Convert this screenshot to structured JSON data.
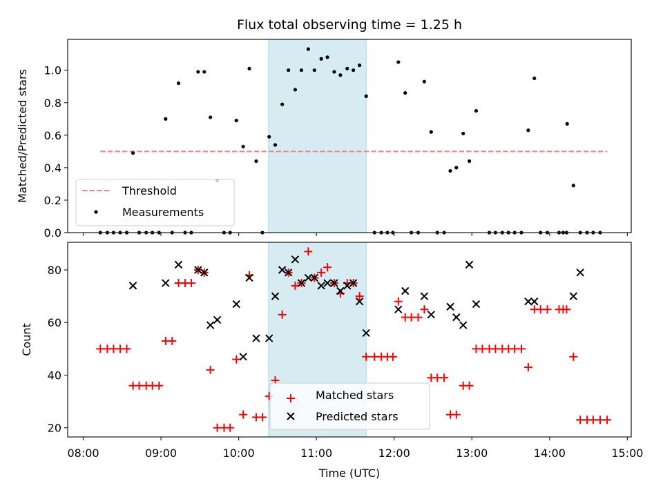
{
  "chart_data": [
    {
      "type": "scatter",
      "panel": "top",
      "title": "Flux total observing time = 1.25 h",
      "xlabel": "",
      "ylabel": "Matched/Predicted stars",
      "xlim": [
        7.8,
        15.05
      ],
      "ylim": [
        0.0,
        1.19
      ],
      "yticks": [
        0.0,
        0.2,
        0.4,
        0.6,
        0.8,
        1.0
      ],
      "ytick_labels": [
        "0.0",
        "0.2",
        "0.4",
        "0.6",
        "0.8",
        "1.0"
      ],
      "xticks": [
        8,
        9,
        10,
        11,
        12,
        13,
        14,
        15
      ],
      "highlight_span": {
        "start": 10.384,
        "end": 11.64,
        "color": "#add8e6"
      },
      "threshold": {
        "label": "Threshold",
        "value": 0.5,
        "x_range": [
          8.22,
          14.74
        ],
        "color": "#ff7f7f",
        "style": "dashed"
      },
      "legend": {
        "placement": "lower-left",
        "entries": [
          "Threshold",
          "Measurements"
        ]
      },
      "series": [
        {
          "name": "Measurements",
          "color": "#000000",
          "marker": "dot",
          "points": [
            [
              8.22,
              0
            ],
            [
              8.31,
              0
            ],
            [
              8.39,
              0
            ],
            [
              8.475,
              0
            ],
            [
              8.56,
              0
            ],
            [
              8.64,
              0.49
            ],
            [
              8.72,
              0
            ],
            [
              8.81,
              0
            ],
            [
              8.89,
              0
            ],
            [
              8.975,
              0
            ],
            [
              9.06,
              0.7
            ],
            [
              9.144,
              0
            ],
            [
              9.226,
              0.92
            ],
            [
              9.31,
              0
            ],
            [
              9.39,
              0
            ],
            [
              9.478,
              0.99
            ],
            [
              9.557,
              0.99
            ],
            [
              9.636,
              0.71
            ],
            [
              9.724,
              0.32
            ],
            [
              9.812,
              0
            ],
            [
              9.89,
              0
            ],
            [
              9.97,
              0.69
            ],
            [
              10.058,
              0.53
            ],
            [
              10.137,
              1.01
            ],
            [
              10.225,
              0.44
            ],
            [
              10.305,
              0
            ],
            [
              10.392,
              0.59
            ],
            [
              10.47,
              0.54
            ],
            [
              10.56,
              0.79
            ],
            [
              10.64,
              1.0
            ],
            [
              10.727,
              0.88
            ],
            [
              10.807,
              1.0
            ],
            [
              10.895,
              1.13
            ],
            [
              10.974,
              1.0
            ],
            [
              11.062,
              1.07
            ],
            [
              11.141,
              1.08
            ],
            [
              11.229,
              0.99
            ],
            [
              11.308,
              0.97
            ],
            [
              11.396,
              1.01
            ],
            [
              11.475,
              1.0
            ],
            [
              11.555,
              1.03
            ],
            [
              11.64,
              0.84
            ],
            [
              11.746,
              0
            ],
            [
              11.834,
              0
            ],
            [
              11.913,
              0
            ],
            [
              11.984,
              0
            ],
            [
              12.054,
              1.05
            ],
            [
              12.142,
              0.86
            ],
            [
              12.221,
              0
            ],
            [
              12.309,
              0
            ],
            [
              12.388,
              0.93
            ],
            [
              12.476,
              0.62
            ],
            [
              12.555,
              0
            ],
            [
              12.643,
              0
            ],
            [
              12.722,
              0.38
            ],
            [
              12.8,
              0.4
            ],
            [
              12.888,
              0.61
            ],
            [
              12.967,
              0.44
            ],
            [
              13.055,
              0.75
            ],
            [
              13.224,
              0
            ],
            [
              13.303,
              0
            ],
            [
              13.391,
              0
            ],
            [
              13.47,
              0
            ],
            [
              13.55,
              0
            ],
            [
              13.637,
              0
            ],
            [
              13.725,
              0.63
            ],
            [
              13.804,
              0.95
            ],
            [
              13.883,
              0
            ],
            [
              13.971,
              0
            ],
            [
              14.121,
              0
            ],
            [
              14.174,
              0
            ],
            [
              14.218,
              0
            ],
            [
              14.226,
              0.67
            ],
            [
              14.306,
              0.29
            ],
            [
              14.394,
              0
            ],
            [
              14.482,
              0
            ],
            [
              14.56,
              0
            ],
            [
              14.65,
              0
            ]
          ]
        }
      ]
    },
    {
      "type": "scatter",
      "panel": "bottom",
      "title": "",
      "xlabel": "Time (UTC)",
      "ylabel": "Count",
      "xlim": [
        7.8,
        15.05
      ],
      "ylim": [
        16.5,
        90.5
      ],
      "yticks": [
        20,
        40,
        60,
        80
      ],
      "ytick_labels": [
        "20",
        "40",
        "60",
        "80"
      ],
      "xticks": [
        8,
        9,
        10,
        11,
        12,
        13,
        14,
        15
      ],
      "xtick_labels": [
        "08:00",
        "09:00",
        "10:00",
        "11:00",
        "12:00",
        "13:00",
        "14:00",
        "15:00"
      ],
      "highlight_span": {
        "start": 10.384,
        "end": 11.64,
        "color": "#add8e6"
      },
      "legend": {
        "placement": "lower-center",
        "entries": [
          "Matched stars",
          "Predicted stars"
        ]
      },
      "series": [
        {
          "name": "Matched stars",
          "color": "#ff0000",
          "marker": "plus",
          "points": [
            [
              8.22,
              50
            ],
            [
              8.31,
              50
            ],
            [
              8.39,
              50
            ],
            [
              8.475,
              50
            ],
            [
              8.56,
              50
            ],
            [
              8.64,
              36
            ],
            [
              8.72,
              36
            ],
            [
              8.81,
              36
            ],
            [
              8.89,
              36
            ],
            [
              8.975,
              36
            ],
            [
              9.06,
              53
            ],
            [
              9.144,
              53
            ],
            [
              9.226,
              75
            ],
            [
              9.31,
              75
            ],
            [
              9.39,
              75
            ],
            [
              9.478,
              80
            ],
            [
              9.557,
              79
            ],
            [
              9.636,
              42
            ],
            [
              9.724,
              20
            ],
            [
              9.812,
              20
            ],
            [
              9.89,
              20
            ],
            [
              9.97,
              46
            ],
            [
              10.058,
              25
            ],
            [
              10.137,
              78
            ],
            [
              10.225,
              24
            ],
            [
              10.305,
              24
            ],
            [
              10.392,
              32
            ],
            [
              10.47,
              38
            ],
            [
              10.56,
              63
            ],
            [
              10.64,
              79
            ],
            [
              10.727,
              74
            ],
            [
              10.807,
              75
            ],
            [
              10.895,
              87
            ],
            [
              10.974,
              77
            ],
            [
              11.062,
              79
            ],
            [
              11.141,
              81
            ],
            [
              11.229,
              75
            ],
            [
              11.308,
              71
            ],
            [
              11.396,
              75
            ],
            [
              11.475,
              75
            ],
            [
              11.555,
              70
            ],
            [
              11.64,
              47
            ],
            [
              11.746,
              47
            ],
            [
              11.834,
              47
            ],
            [
              11.913,
              47
            ],
            [
              11.984,
              47
            ],
            [
              12.054,
              68
            ],
            [
              12.142,
              62
            ],
            [
              12.221,
              62
            ],
            [
              12.309,
              62
            ],
            [
              12.388,
              65
            ],
            [
              12.476,
              39
            ],
            [
              12.555,
              39
            ],
            [
              12.643,
              39
            ],
            [
              12.722,
              25
            ],
            [
              12.8,
              25
            ],
            [
              12.888,
              36
            ],
            [
              12.967,
              36
            ],
            [
              13.055,
              50
            ],
            [
              13.134,
              50
            ],
            [
              13.224,
              50
            ],
            [
              13.303,
              50
            ],
            [
              13.391,
              50
            ],
            [
              13.47,
              50
            ],
            [
              13.55,
              50
            ],
            [
              13.637,
              50
            ],
            [
              13.725,
              43
            ],
            [
              13.804,
              65
            ],
            [
              13.883,
              65
            ],
            [
              13.971,
              65
            ],
            [
              14.121,
              65
            ],
            [
              14.174,
              65
            ],
            [
              14.218,
              65
            ],
            [
              14.306,
              47
            ],
            [
              14.394,
              23
            ],
            [
              14.482,
              23
            ],
            [
              14.56,
              23
            ],
            [
              14.65,
              23
            ],
            [
              14.74,
              23
            ]
          ]
        },
        {
          "name": "Predicted stars",
          "color": "#000000",
          "marker": "x",
          "points": [
            [
              8.64,
              74
            ],
            [
              9.06,
              75
            ],
            [
              9.226,
              82
            ],
            [
              9.478,
              80
            ],
            [
              9.557,
              79
            ],
            [
              9.636,
              59
            ],
            [
              9.724,
              61
            ],
            [
              9.97,
              67
            ],
            [
              10.058,
              47
            ],
            [
              10.137,
              77
            ],
            [
              10.225,
              54
            ],
            [
              10.392,
              54
            ],
            [
              10.47,
              70
            ],
            [
              10.56,
              80
            ],
            [
              10.64,
              79
            ],
            [
              10.727,
              84
            ],
            [
              10.807,
              75
            ],
            [
              10.895,
              77
            ],
            [
              10.974,
              77
            ],
            [
              11.062,
              74
            ],
            [
              11.141,
              75
            ],
            [
              11.229,
              75
            ],
            [
              11.308,
              72
            ],
            [
              11.396,
              74
            ],
            [
              11.475,
              75
            ],
            [
              11.555,
              68
            ],
            [
              11.64,
              56
            ],
            [
              12.054,
              65
            ],
            [
              12.142,
              72
            ],
            [
              12.388,
              70
            ],
            [
              12.476,
              63
            ],
            [
              12.722,
              66
            ],
            [
              12.8,
              62
            ],
            [
              12.888,
              59
            ],
            [
              12.967,
              82
            ],
            [
              13.055,
              67
            ],
            [
              13.725,
              68
            ],
            [
              13.804,
              68
            ],
            [
              14.306,
              70
            ],
            [
              14.394,
              79
            ]
          ]
        }
      ]
    }
  ]
}
